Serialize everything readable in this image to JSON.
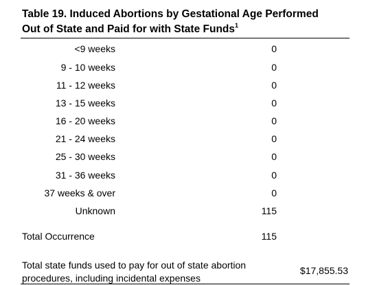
{
  "table": {
    "title_line1": "Table 19. Induced Abortions by Gestational Age Performed",
    "title_line2": "Out of State and Paid for with State Funds",
    "title_footnote": "1",
    "rows": [
      {
        "label": "<9 weeks",
        "value": "0"
      },
      {
        "label": "9 - 10 weeks",
        "value": "0"
      },
      {
        "label": "11 - 12 weeks",
        "value": "0"
      },
      {
        "label": "13 - 15 weeks",
        "value": "0"
      },
      {
        "label": "16 - 20 weeks",
        "value": "0"
      },
      {
        "label": "21 - 24 weeks",
        "value": "0"
      },
      {
        "label": "25 - 30 weeks",
        "value": "0"
      },
      {
        "label": "31 - 36 weeks",
        "value": "0"
      },
      {
        "label": "37 weeks & over",
        "value": "0"
      },
      {
        "label": "Unknown",
        "value": "115"
      }
    ],
    "total": {
      "label": "Total Occurrence",
      "value": "115"
    },
    "funds": {
      "label_line1": "Total state funds used to pay for out of state abortion",
      "label_line2": "procedures, including incidental expenses",
      "value": "$17,855.53"
    }
  }
}
